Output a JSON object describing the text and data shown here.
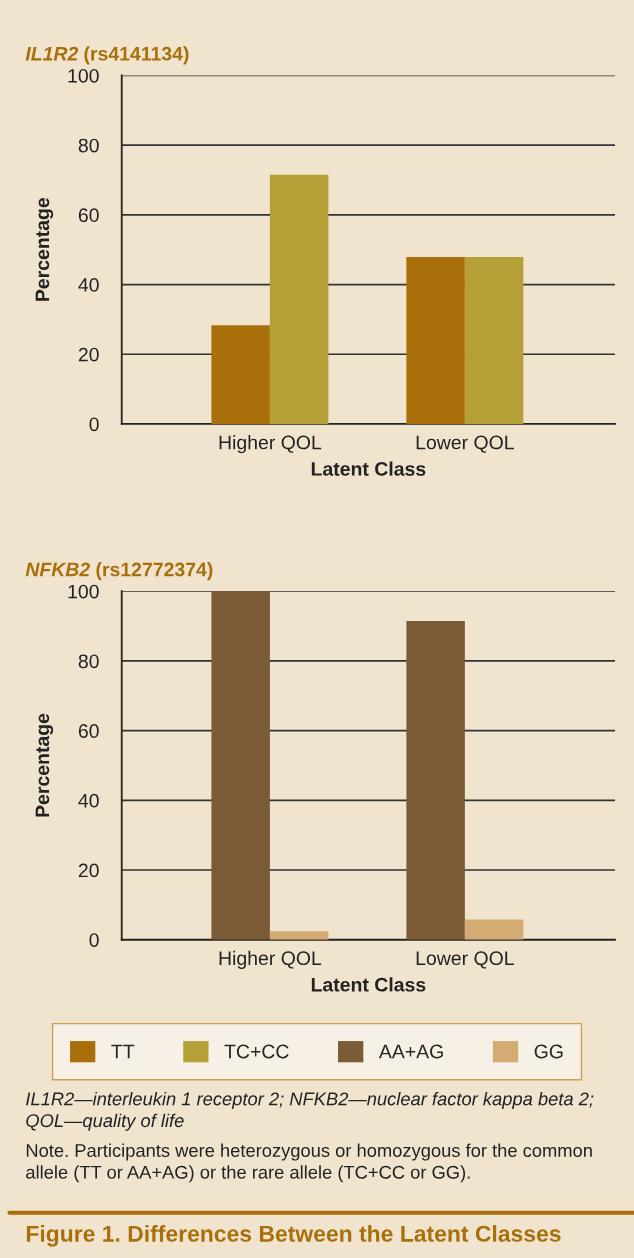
{
  "chart_data": [
    {
      "type": "bar",
      "title": "IL1R2 (rs4141134)",
      "categories": [
        "Higher QOL",
        "Lower QOL"
      ],
      "xlabel": "Latent Class",
      "ylabel": "Percentage",
      "ylim": [
        0,
        100
      ],
      "yticks": [
        0,
        20,
        40,
        60,
        80,
        100
      ],
      "grid": "y",
      "legend": "bottom",
      "series": [
        {
          "name": "TT",
          "color": "#a86f0a",
          "values": [
            28.3,
            47.9
          ]
        },
        {
          "name": "TC+CC",
          "color": "#b4a036",
          "values": [
            71.5,
            47.9
          ]
        }
      ]
    },
    {
      "type": "bar",
      "title": "NFKB2 (rs12772374)",
      "categories": [
        "Higher QOL",
        "Lower QOL"
      ],
      "xlabel": "Latent Class",
      "ylabel": "Percentage",
      "ylim": [
        0,
        100
      ],
      "yticks": [
        0,
        20,
        40,
        60,
        80,
        100
      ],
      "grid": "y",
      "legend": "bottom",
      "series": [
        {
          "name": "AA+AG",
          "color": "#7b5b36",
          "values": [
            100,
            91.5
          ]
        },
        {
          "name": "GG",
          "color": "#d4ab72",
          "values": [
            2.4,
            5.8
          ]
        }
      ],
      "annotations": [
        "IL1R2—interleukin 1 receptor 2; NFKB2—nuclear factor kappa beta 2; QOL—quality of life",
        "Note. Participants were heterozygous or homozygous for the common allele (TT or AA+AG) or the rare allele (TC+CC or GG).",
        "Figure 1. Differences Between the Latent Classes"
      ]
    }
  ]
}
